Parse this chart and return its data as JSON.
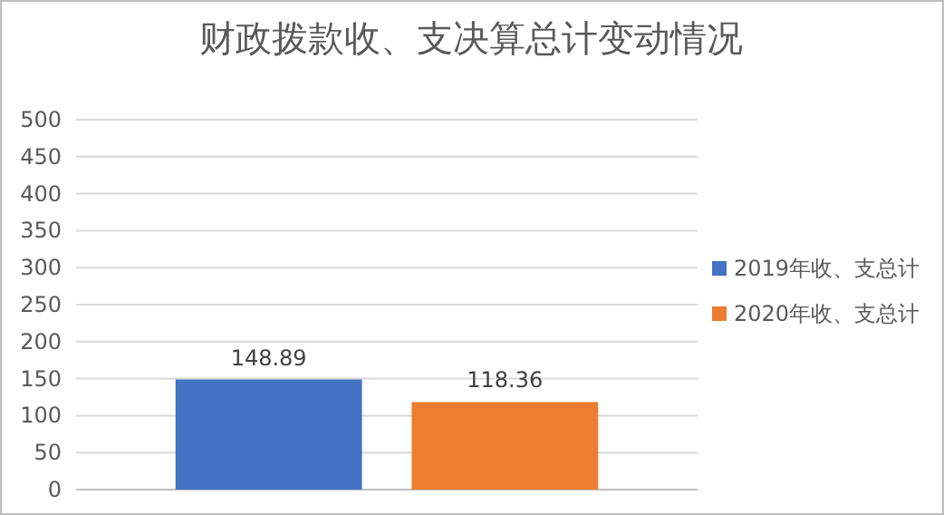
{
  "chart_data": {
    "type": "bar",
    "title": "财政拨款收、支决算总计变动情况",
    "categories": [
      null
    ],
    "series": [
      {
        "name": "2019年收、支总计",
        "color": "#4472c4",
        "values": [
          148.89
        ]
      },
      {
        "name": "2020年收、支总计",
        "color": "#ed7d31",
        "values": [
          118.36
        ]
      }
    ],
    "ylim": [
      0,
      500
    ],
    "yticks": [
      0,
      50,
      100,
      150,
      200,
      250,
      300,
      350,
      400,
      450,
      500
    ],
    "grid": "y",
    "legend": "right",
    "data_labels": true
  }
}
